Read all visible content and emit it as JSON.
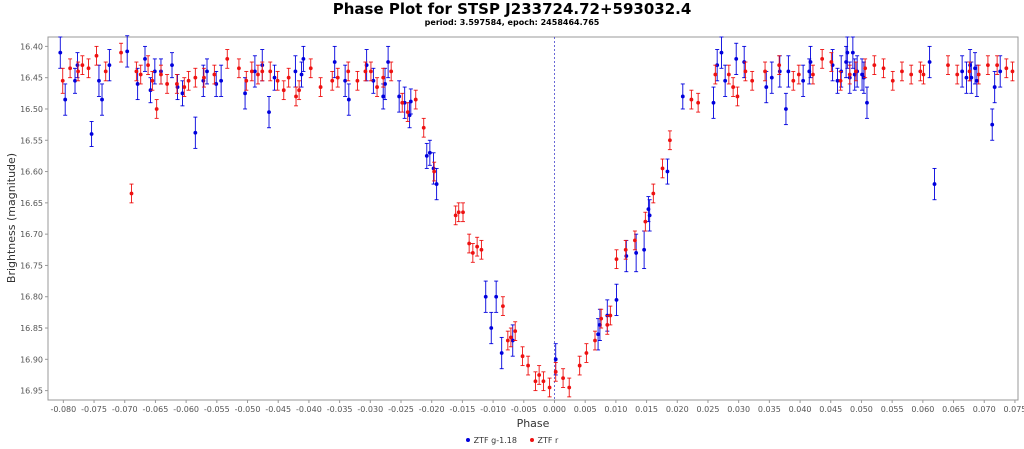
{
  "chart_data": {
    "type": "scatter",
    "title": "Phase Plot for STSP J233724.72+593032.4",
    "subtitle": "period: 3.597584, epoch: 2458464.765",
    "xlabel": "Phase",
    "ylabel": "Brightness (magnitude)",
    "xlim": [
      -0.0825,
      0.0755
    ],
    "ylim": [
      16.965,
      16.385
    ],
    "y_inverted": true,
    "x_ticks": [
      -0.08,
      -0.075,
      -0.07,
      -0.065,
      -0.06,
      -0.055,
      -0.05,
      -0.045,
      -0.04,
      -0.035,
      -0.03,
      -0.025,
      -0.02,
      -0.015,
      -0.01,
      -0.005,
      0.0,
      0.005,
      0.01,
      0.015,
      0.02,
      0.025,
      0.03,
      0.035,
      0.04,
      0.045,
      0.05,
      0.055,
      0.06,
      0.065,
      0.07,
      0.075
    ],
    "x_tick_labels": [
      "-0.080",
      "-0.075",
      "-0.070",
      "-0.065",
      "-0.060",
      "-0.055",
      "-0.050",
      "-0.045",
      "-0.040",
      "-0.035",
      "-0.030",
      "-0.025",
      "-0.020",
      "-0.015",
      "-0.010",
      "-0.005",
      "0.000",
      "0.005",
      "0.010",
      "0.015",
      "0.020",
      "0.025",
      "0.030",
      "0.035",
      "0.040",
      "0.045",
      "0.050",
      "0.055",
      "0.060",
      "0.065",
      "0.070",
      "0.075"
    ],
    "y_ticks": [
      16.4,
      16.45,
      16.5,
      16.55,
      16.6,
      16.65,
      16.7,
      16.75,
      16.8,
      16.85,
      16.9,
      16.95
    ],
    "y_tick_labels": [
      "16.40",
      "16.45",
      "16.50",
      "16.55",
      "16.60",
      "16.65",
      "16.70",
      "16.75",
      "16.80",
      "16.85",
      "16.90",
      "16.95"
    ],
    "vertical_reference_line_x": 0.0,
    "grid": false,
    "legend_position": "bottom-center",
    "series": [
      {
        "name": "ZTF g-1.18",
        "color": "#0000dd",
        "points": [
          [
            -0.0805,
            16.41,
            0.025
          ],
          [
            -0.0797,
            16.485,
            0.025
          ],
          [
            -0.0781,
            16.455,
            0.02
          ],
          [
            -0.0777,
            16.43,
            0.02
          ],
          [
            -0.0754,
            16.54,
            0.02
          ],
          [
            -0.0742,
            16.455,
            0.025
          ],
          [
            -0.0737,
            16.485,
            0.025
          ],
          [
            -0.0725,
            16.43,
            0.025
          ],
          [
            -0.0696,
            16.408,
            0.025
          ],
          [
            -0.0679,
            16.46,
            0.025
          ],
          [
            -0.0667,
            16.42,
            0.02
          ],
          [
            -0.0658,
            16.47,
            0.02
          ],
          [
            -0.0651,
            16.44,
            0.02
          ],
          [
            -0.0641,
            16.44,
            0.02
          ],
          [
            -0.0623,
            16.43,
            0.02
          ],
          [
            -0.0614,
            16.465,
            0.02
          ],
          [
            -0.0606,
            16.475,
            0.02
          ],
          [
            -0.0585,
            16.538,
            0.025
          ],
          [
            -0.0572,
            16.455,
            0.025
          ],
          [
            -0.0566,
            16.44,
            0.02
          ],
          [
            -0.0551,
            16.46,
            0.02
          ],
          [
            -0.0543,
            16.455,
            0.025
          ],
          [
            -0.0504,
            16.475,
            0.025
          ],
          [
            -0.0488,
            16.44,
            0.025
          ],
          [
            -0.0476,
            16.43,
            0.025
          ],
          [
            -0.0465,
            16.505,
            0.025
          ],
          [
            -0.0456,
            16.45,
            0.02
          ],
          [
            -0.0422,
            16.44,
            0.025
          ],
          [
            -0.0412,
            16.445,
            0.02
          ],
          [
            -0.0409,
            16.42,
            0.02
          ],
          [
            -0.0358,
            16.425,
            0.025
          ],
          [
            -0.0341,
            16.455,
            0.025
          ],
          [
            -0.0335,
            16.485,
            0.025
          ],
          [
            -0.0306,
            16.43,
            0.025
          ],
          [
            -0.0295,
            16.455,
            0.02
          ],
          [
            -0.0279,
            16.48,
            0.02
          ],
          [
            -0.0276,
            16.46,
            0.025
          ],
          [
            -0.0271,
            16.425,
            0.025
          ],
          [
            -0.0253,
            16.48,
            0.025
          ],
          [
            -0.0244,
            16.49,
            0.025
          ],
          [
            -0.0236,
            16.51,
            0.02
          ],
          [
            -0.0234,
            16.488,
            0.02
          ],
          [
            -0.0208,
            16.575,
            0.02
          ],
          [
            -0.0203,
            16.57,
            0.02
          ],
          [
            -0.0197,
            16.595,
            0.025
          ],
          [
            -0.0192,
            16.62,
            0.025
          ],
          [
            -0.0112,
            16.8,
            0.025
          ],
          [
            -0.0103,
            16.85,
            0.025
          ],
          [
            -0.0095,
            16.8,
            0.025
          ],
          [
            -0.0086,
            16.89,
            0.025
          ],
          [
            -0.0068,
            16.87,
            0.025
          ],
          [
            0.0002,
            16.9,
            0.025
          ],
          [
            0.0071,
            16.86,
            0.025
          ],
          [
            0.0074,
            16.845,
            0.025
          ],
          [
            0.0086,
            16.83,
            0.025
          ],
          [
            0.0101,
            16.805,
            0.025
          ],
          [
            0.0117,
            16.735,
            0.025
          ],
          [
            0.0133,
            16.73,
            0.03
          ],
          [
            0.0146,
            16.725,
            0.03
          ],
          [
            0.0153,
            16.66,
            0.02
          ],
          [
            0.0155,
            16.67,
            0.025
          ],
          [
            0.0184,
            16.6,
            0.02
          ],
          [
            0.0209,
            16.48,
            0.02
          ],
          [
            0.0259,
            16.49,
            0.025
          ],
          [
            0.0265,
            16.43,
            0.025
          ],
          [
            0.0272,
            16.41,
            0.025
          ],
          [
            0.0278,
            16.455,
            0.025
          ],
          [
            0.0296,
            16.42,
            0.025
          ],
          [
            0.0309,
            16.425,
            0.025
          ],
          [
            0.0345,
            16.465,
            0.025
          ],
          [
            0.0354,
            16.45,
            0.025
          ],
          [
            0.0367,
            16.44,
            0.025
          ],
          [
            0.0377,
            16.5,
            0.025
          ],
          [
            0.0381,
            16.44,
            0.025
          ],
          [
            0.0405,
            16.455,
            0.025
          ],
          [
            0.0415,
            16.44,
            0.02
          ],
          [
            0.0417,
            16.425,
            0.025
          ],
          [
            0.0453,
            16.43,
            0.025
          ],
          [
            0.0461,
            16.455,
            0.02
          ],
          [
            0.0467,
            16.44,
            0.025
          ],
          [
            0.0475,
            16.425,
            0.025
          ],
          [
            0.0477,
            16.41,
            0.025
          ],
          [
            0.0481,
            16.45,
            0.025
          ],
          [
            0.0486,
            16.41,
            0.025
          ],
          [
            0.0489,
            16.445,
            0.025
          ],
          [
            0.0493,
            16.44,
            0.025
          ],
          [
            0.0501,
            16.445,
            0.025
          ],
          [
            0.0504,
            16.45,
            0.025
          ],
          [
            0.0509,
            16.49,
            0.025
          ],
          [
            0.0611,
            16.425,
            0.025
          ],
          [
            0.0619,
            16.62,
            0.025
          ],
          [
            0.0664,
            16.44,
            0.025
          ],
          [
            0.0671,
            16.45,
            0.025
          ],
          [
            0.0677,
            16.43,
            0.025
          ],
          [
            0.0679,
            16.45,
            0.025
          ],
          [
            0.0685,
            16.435,
            0.025
          ],
          [
            0.0688,
            16.455,
            0.025
          ],
          [
            0.0713,
            16.525,
            0.025
          ],
          [
            0.0717,
            16.465,
            0.025
          ],
          [
            0.0726,
            16.44,
            0.025
          ]
        ]
      },
      {
        "name": "ZTF r",
        "color": "#ee1111",
        "points": [
          [
            -0.0801,
            16.455,
            0.02
          ],
          [
            -0.0789,
            16.435,
            0.015
          ],
          [
            -0.0776,
            16.44,
            0.015
          ],
          [
            -0.0769,
            16.43,
            0.015
          ],
          [
            -0.0759,
            16.435,
            0.015
          ],
          [
            -0.0746,
            16.415,
            0.015
          ],
          [
            -0.0731,
            16.44,
            0.015
          ],
          [
            -0.0706,
            16.41,
            0.015
          ],
          [
            -0.0689,
            16.635,
            0.015
          ],
          [
            -0.0681,
            16.44,
            0.015
          ],
          [
            -0.0674,
            16.445,
            0.015
          ],
          [
            -0.0662,
            16.43,
            0.015
          ],
          [
            -0.0655,
            16.455,
            0.015
          ],
          [
            -0.0648,
            16.5,
            0.015
          ],
          [
            -0.0641,
            16.445,
            0.015
          ],
          [
            -0.0631,
            16.46,
            0.015
          ],
          [
            -0.0615,
            16.46,
            0.015
          ],
          [
            -0.0603,
            16.465,
            0.015
          ],
          [
            -0.0596,
            16.455,
            0.015
          ],
          [
            -0.0585,
            16.45,
            0.015
          ],
          [
            -0.0571,
            16.45,
            0.015
          ],
          [
            -0.0554,
            16.445,
            0.015
          ],
          [
            -0.0533,
            16.42,
            0.015
          ],
          [
            -0.0514,
            16.435,
            0.015
          ],
          [
            -0.0502,
            16.455,
            0.015
          ],
          [
            -0.0493,
            16.44,
            0.015
          ],
          [
            -0.0483,
            16.445,
            0.015
          ],
          [
            -0.0476,
            16.44,
            0.015
          ],
          [
            -0.0463,
            16.44,
            0.015
          ],
          [
            -0.0451,
            16.455,
            0.015
          ],
          [
            -0.0441,
            16.47,
            0.015
          ],
          [
            -0.0433,
            16.45,
            0.015
          ],
          [
            -0.0421,
            16.48,
            0.015
          ],
          [
            -0.0416,
            16.47,
            0.015
          ],
          [
            -0.0397,
            16.435,
            0.015
          ],
          [
            -0.0381,
            16.465,
            0.015
          ],
          [
            -0.0362,
            16.455,
            0.015
          ],
          [
            -0.0353,
            16.45,
            0.015
          ],
          [
            -0.0336,
            16.44,
            0.015
          ],
          [
            -0.0321,
            16.455,
            0.015
          ],
          [
            -0.0308,
            16.44,
            0.015
          ],
          [
            -0.0299,
            16.44,
            0.015
          ],
          [
            -0.0289,
            16.465,
            0.015
          ],
          [
            -0.0279,
            16.45,
            0.015
          ],
          [
            -0.0266,
            16.44,
            0.015
          ],
          [
            -0.0248,
            16.49,
            0.015
          ],
          [
            -0.0239,
            16.505,
            0.015
          ],
          [
            -0.0226,
            16.485,
            0.015
          ],
          [
            -0.0213,
            16.53,
            0.015
          ],
          [
            -0.0196,
            16.6,
            0.015
          ],
          [
            -0.0161,
            16.67,
            0.015
          ],
          [
            -0.0156,
            16.665,
            0.015
          ],
          [
            -0.0149,
            16.665,
            0.015
          ],
          [
            -0.0139,
            16.715,
            0.015
          ],
          [
            -0.0133,
            16.73,
            0.015
          ],
          [
            -0.0126,
            16.72,
            0.015
          ],
          [
            -0.0119,
            16.725,
            0.015
          ],
          [
            -0.0084,
            16.815,
            0.015
          ],
          [
            -0.0076,
            16.87,
            0.015
          ],
          [
            -0.0071,
            16.865,
            0.015
          ],
          [
            -0.0064,
            16.855,
            0.015
          ],
          [
            -0.0052,
            16.895,
            0.015
          ],
          [
            -0.0043,
            16.91,
            0.015
          ],
          [
            -0.0031,
            16.935,
            0.015
          ],
          [
            -0.0025,
            16.925,
            0.015
          ],
          [
            -0.0018,
            16.935,
            0.015
          ],
          [
            -0.0008,
            16.945,
            0.015
          ],
          [
            0.0002,
            16.92,
            0.015
          ],
          [
            0.0014,
            16.93,
            0.015
          ],
          [
            0.0024,
            16.945,
            0.015
          ],
          [
            0.0041,
            16.91,
            0.015
          ],
          [
            0.0052,
            16.89,
            0.015
          ],
          [
            0.0066,
            16.87,
            0.015
          ],
          [
            0.0076,
            16.835,
            0.015
          ],
          [
            0.0086,
            16.845,
            0.015
          ],
          [
            0.0091,
            16.83,
            0.015
          ],
          [
            0.0101,
            16.74,
            0.015
          ],
          [
            0.0116,
            16.725,
            0.015
          ],
          [
            0.0131,
            16.71,
            0.015
          ],
          [
            0.0148,
            16.68,
            0.015
          ],
          [
            0.0161,
            16.635,
            0.015
          ],
          [
            0.0176,
            16.595,
            0.015
          ],
          [
            0.0188,
            16.55,
            0.015
          ],
          [
            0.0223,
            16.485,
            0.015
          ],
          [
            0.0234,
            16.49,
            0.015
          ],
          [
            0.0262,
            16.445,
            0.015
          ],
          [
            0.0284,
            16.445,
            0.015
          ],
          [
            0.0291,
            16.465,
            0.015
          ],
          [
            0.0298,
            16.48,
            0.015
          ],
          [
            0.0311,
            16.44,
            0.015
          ],
          [
            0.0322,
            16.455,
            0.015
          ],
          [
            0.0343,
            16.44,
            0.015
          ],
          [
            0.0366,
            16.43,
            0.015
          ],
          [
            0.0389,
            16.455,
            0.015
          ],
          [
            0.0398,
            16.445,
            0.015
          ],
          [
            0.0421,
            16.445,
            0.015
          ],
          [
            0.0436,
            16.42,
            0.015
          ],
          [
            0.0451,
            16.425,
            0.015
          ],
          [
            0.0466,
            16.455,
            0.015
          ],
          [
            0.0481,
            16.445,
            0.015
          ],
          [
            0.0491,
            16.44,
            0.015
          ],
          [
            0.0506,
            16.435,
            0.015
          ],
          [
            0.0521,
            16.43,
            0.015
          ],
          [
            0.0536,
            16.435,
            0.015
          ],
          [
            0.0551,
            16.455,
            0.015
          ],
          [
            0.0566,
            16.44,
            0.015
          ],
          [
            0.0581,
            16.445,
            0.015
          ],
          [
            0.0596,
            16.44,
            0.015
          ],
          [
            0.0601,
            16.445,
            0.015
          ],
          [
            0.0641,
            16.43,
            0.015
          ],
          [
            0.0656,
            16.445,
            0.015
          ],
          [
            0.0676,
            16.44,
            0.015
          ],
          [
            0.0691,
            16.445,
            0.015
          ],
          [
            0.0706,
            16.43,
            0.015
          ],
          [
            0.0721,
            16.43,
            0.015
          ],
          [
            0.0736,
            16.435,
            0.015
          ],
          [
            0.0746,
            16.44,
            0.015
          ]
        ]
      }
    ]
  }
}
